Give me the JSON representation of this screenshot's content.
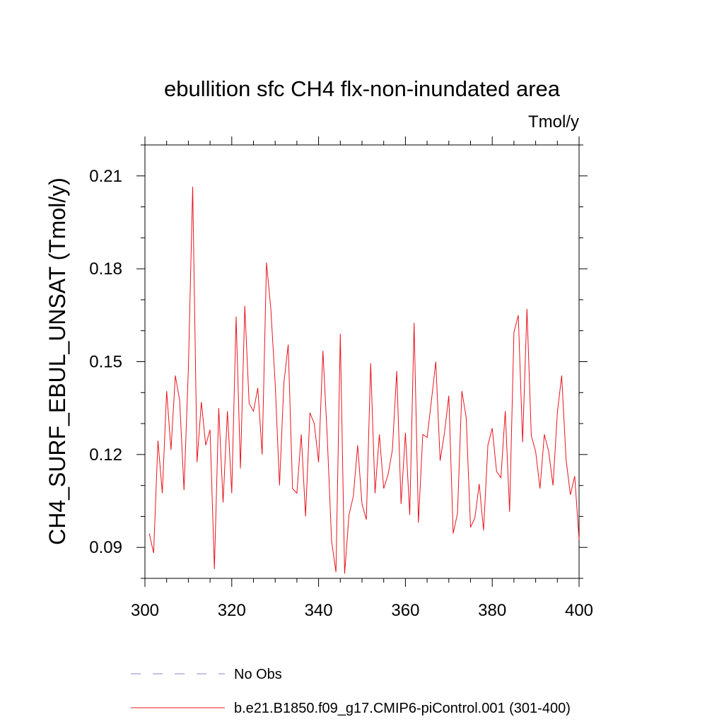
{
  "chart_data": {
    "type": "line",
    "title": "ebullition sfc CH4 flx-non-inundated area",
    "units_label": "Tmol/y",
    "ylabel": "CH4_SURF_EBUL_UNSAT  (Tmol/y)",
    "xlabel": "",
    "xlim": [
      300,
      400
    ],
    "ylim": [
      0.08,
      0.22
    ],
    "x_ticks": [
      300,
      320,
      340,
      360,
      380,
      400
    ],
    "x_tick_labels": [
      "300",
      "320",
      "340",
      "360",
      "380",
      "400"
    ],
    "y_ticks": [
      0.09,
      0.12,
      0.15,
      0.18,
      0.21
    ],
    "y_tick_labels": [
      "0.09",
      "0.12",
      "0.15",
      "0.18",
      "0.21"
    ],
    "grid": false,
    "legend_position": "bottom",
    "series": [
      {
        "name": "b.e21.B1850.f09_g17.CMIP6-piControl.001 (301-400)",
        "color": "#e8141e",
        "style": "solid",
        "x": [
          301,
          302,
          303,
          304,
          305,
          306,
          307,
          308,
          309,
          310,
          311,
          312,
          313,
          314,
          315,
          316,
          317,
          318,
          319,
          320,
          321,
          322,
          323,
          324,
          325,
          326,
          327,
          328,
          329,
          330,
          331,
          332,
          333,
          334,
          335,
          336,
          337,
          338,
          339,
          340,
          341,
          342,
          343,
          344,
          345,
          346,
          347,
          348,
          349,
          350,
          351,
          352,
          353,
          354,
          355,
          356,
          357,
          358,
          359,
          360,
          361,
          362,
          363,
          364,
          365,
          366,
          367,
          368,
          369,
          370,
          371,
          372,
          373,
          374,
          375,
          376,
          377,
          378,
          379,
          380,
          381,
          382,
          383,
          384,
          385,
          386,
          387,
          388,
          389,
          390,
          391,
          392,
          393,
          394,
          395,
          396,
          397,
          398,
          399,
          400
        ],
        "values": [
          0.0945,
          0.0882,
          0.1245,
          0.1075,
          0.1405,
          0.1215,
          0.1455,
          0.1375,
          0.1085,
          0.1475,
          0.2065,
          0.1175,
          0.137,
          0.123,
          0.128,
          0.083,
          0.135,
          0.1045,
          0.134,
          0.1075,
          0.1645,
          0.1155,
          0.168,
          0.1365,
          0.134,
          0.1415,
          0.12,
          0.182,
          0.167,
          0.143,
          0.11,
          0.143,
          0.1555,
          0.109,
          0.1075,
          0.1265,
          0.1,
          0.1335,
          0.13,
          0.1175,
          0.1535,
          0.1255,
          0.092,
          0.082,
          0.159,
          0.0815,
          0.1005,
          0.1065,
          0.123,
          0.104,
          0.099,
          0.1495,
          0.1075,
          0.1265,
          0.109,
          0.1135,
          0.1215,
          0.147,
          0.104,
          0.127,
          0.1005,
          0.1625,
          0.098,
          0.1265,
          0.1255,
          0.1375,
          0.15,
          0.118,
          0.127,
          0.139,
          0.0945,
          0.101,
          0.1405,
          0.132,
          0.0965,
          0.0995,
          0.1105,
          0.0955,
          0.123,
          0.1285,
          0.1145,
          0.1125,
          0.134,
          0.1015,
          0.1595,
          0.165,
          0.124,
          0.167,
          0.126,
          0.121,
          0.109,
          0.1265,
          0.121,
          0.11,
          0.1335,
          0.1455,
          0.1185,
          0.107,
          0.113,
          0.0925
        ]
      },
      {
        "name": "No Obs",
        "color": "#8a86cf",
        "style": "dashed",
        "x": [],
        "values": []
      }
    ]
  }
}
